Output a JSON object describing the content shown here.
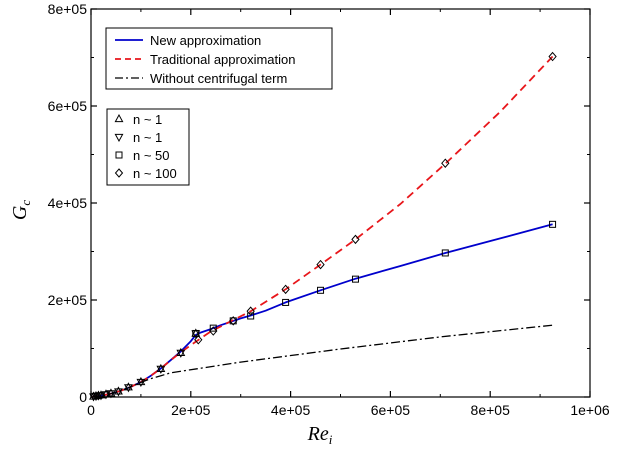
{
  "chart_data": {
    "type": "line",
    "xlabel": "Re",
    "xlabel_sub": "i",
    "ylabel": "G",
    "ylabel_sub": "c",
    "xlim": [
      0,
      1000000
    ],
    "ylim": [
      0,
      800000
    ],
    "x_ticks": [
      0,
      200000,
      400000,
      600000,
      800000,
      1000000
    ],
    "y_ticks": [
      0,
      200000,
      400000,
      600000,
      800000
    ],
    "x_tick_labels": [
      "0",
      "2e+05",
      "4e+05",
      "6e+05",
      "8e+05",
      "1e+06"
    ],
    "y_tick_labels": [
      "0",
      "2e+05",
      "4e+05",
      "6e+05",
      "8e+05"
    ],
    "grid": false,
    "legend_lines_position": "top-left",
    "legend_markers_position": "left",
    "line_series": [
      {
        "name": "New approximation",
        "style": "solid",
        "color": "#0000cc",
        "x": [
          0,
          20000,
          40000,
          60000,
          80000,
          100000,
          120000,
          140000,
          160000,
          180000,
          200000,
          210000,
          220000,
          240000,
          260000,
          280000,
          300000,
          320000,
          350000,
          390000,
          460000,
          530000,
          620000,
          710000,
          820000,
          925000
        ],
        "y": [
          0,
          2500,
          7000,
          13000,
          21000,
          31000,
          44000,
          59000,
          76000,
          94000,
          115000,
          128000,
          133000,
          140000,
          148000,
          155000,
          162000,
          168000,
          178000,
          195000,
          220000,
          244000,
          270000,
          297000,
          327000,
          356000
        ]
      },
      {
        "name": "Traditional approximation",
        "style": "dashed",
        "color": "#e8161b",
        "x": [
          0,
          20000,
          40000,
          60000,
          80000,
          100000,
          120000,
          140000,
          160000,
          180000,
          200000,
          220000,
          240000,
          280000,
          320000,
          390000,
          460000,
          530000,
          620000,
          710000,
          820000,
          925000
        ],
        "y": [
          0,
          2500,
          7000,
          13000,
          21000,
          31000,
          44000,
          59000,
          76000,
          92000,
          107000,
          121000,
          135000,
          156000,
          177000,
          222000,
          273000,
          325000,
          398000,
          481000,
          588000,
          702000
        ]
      },
      {
        "name": "Without centrifugal term",
        "style": "dashdot",
        "color": "#000000",
        "x": [
          0,
          20000,
          40000,
          60000,
          80000,
          100000,
          120000,
          140000,
          160000,
          300000,
          500000,
          700000,
          925000
        ],
        "y": [
          0,
          2500,
          7000,
          13000,
          21000,
          30000,
          38000,
          44000,
          50000,
          72000,
          99000,
          124000,
          148000
        ]
      }
    ],
    "marker_series": [
      {
        "name": "n ~ 1",
        "marker": "triangle-up",
        "points": [
          [
            5000,
            1000
          ],
          [
            10000,
            2000
          ],
          [
            15000,
            3000
          ],
          [
            20000,
            3500
          ],
          [
            30000,
            5500
          ],
          [
            40000,
            7500
          ],
          [
            55000,
            11500
          ],
          [
            75000,
            20000
          ],
          [
            100000,
            31000
          ],
          [
            140000,
            58000
          ],
          [
            180000,
            91000
          ],
          [
            210000,
            131000
          ]
        ]
      },
      {
        "name": "n ~ 1",
        "marker": "triangle-down",
        "points": [
          [
            5000,
            1000
          ],
          [
            10000,
            2000
          ],
          [
            15000,
            3000
          ],
          [
            20000,
            3500
          ],
          [
            30000,
            5500
          ],
          [
            40000,
            7500
          ],
          [
            55000,
            11500
          ],
          [
            75000,
            20000
          ],
          [
            100000,
            31000
          ],
          [
            140000,
            58000
          ],
          [
            180000,
            91000
          ],
          [
            210000,
            131000
          ]
        ]
      },
      {
        "name": "n ~ 50",
        "marker": "square",
        "points": [
          [
            210000,
            131000
          ],
          [
            245000,
            142000
          ],
          [
            285000,
            157000
          ],
          [
            320000,
            167000
          ],
          [
            390000,
            195000
          ],
          [
            460000,
            220000
          ],
          [
            530000,
            243000
          ],
          [
            710000,
            297000
          ],
          [
            925000,
            356000
          ]
        ]
      },
      {
        "name": "n ~ 100",
        "marker": "diamond",
        "points": [
          [
            215000,
            118000
          ],
          [
            245000,
            136000
          ],
          [
            285000,
            157000
          ],
          [
            320000,
            177000
          ],
          [
            390000,
            222000
          ],
          [
            460000,
            273000
          ],
          [
            530000,
            325000
          ],
          [
            710000,
            482000
          ],
          [
            925000,
            702000
          ]
        ]
      }
    ]
  }
}
